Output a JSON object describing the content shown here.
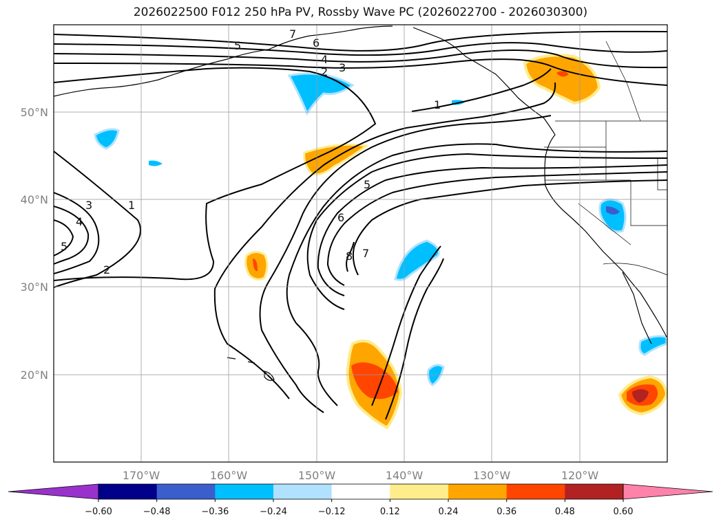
{
  "title": "2026022500 F012 250 hPa PV, Rossby Wave PC (2026022700 - 2026030300)",
  "lat_labels": [
    "50°N",
    "40°N",
    "30°N",
    "20°N"
  ],
  "lon_labels": [
    "170°W",
    "160°W",
    "150°W",
    "140°W",
    "130°W",
    "120°W"
  ],
  "contour_labels": [
    "1",
    "2",
    "3",
    "4",
    "5",
    "6",
    "7",
    "8"
  ],
  "colorbar": {
    "tick_labels": [
      "−0.60",
      "−0.48",
      "−0.36",
      "−0.24",
      "−0.12",
      "0.12",
      "0.24",
      "0.36",
      "0.48",
      "0.60"
    ],
    "colors": [
      "#9932cc",
      "#00008b",
      "#3a5fcd",
      "#00bfff",
      "#b0e2ff",
      "#ffffff",
      "#ffec8b",
      "#ffa500",
      "#ff4500",
      "#b22222",
      "#ff82ab"
    ]
  },
  "chart_data": {
    "type": "map",
    "projection": "PlateCarree",
    "lon_range": [
      -180,
      -110
    ],
    "lat_range": [
      10,
      60
    ],
    "variable": "250 hPa PV",
    "shading": "Rossby Wave PC",
    "contour_levels": [
      1,
      2,
      3,
      4,
      5,
      6,
      7,
      8
    ],
    "grid": true
  }
}
